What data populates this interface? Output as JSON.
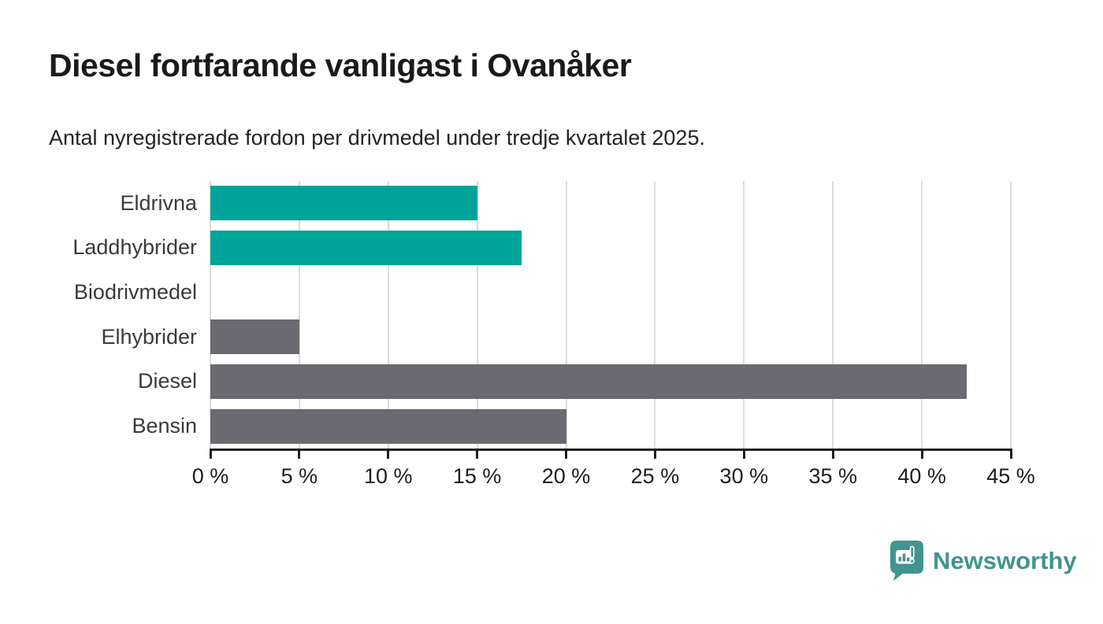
{
  "header": {
    "title": "Diesel fortfarande vanligast i Ovanåker",
    "subtitle": "Antal nyregistrerade fordon per drivmedel under tredje kvartalet 2025."
  },
  "chart_data": {
    "type": "bar",
    "orientation": "horizontal",
    "title": "Diesel fortfarande vanligast i Ovanåker",
    "subtitle": "Antal nyregistrerade fordon per drivmedel under tredje kvartalet 2025.",
    "categories": [
      "Eldrivna",
      "Laddhybrider",
      "Biodrivmedel",
      "Elhybrider",
      "Diesel",
      "Bensin"
    ],
    "values": [
      15,
      17.5,
      0,
      5,
      42.5,
      20
    ],
    "value_unit": "%",
    "bar_colors": [
      "#00a49a",
      "#00a49a",
      "#00a49a",
      "#6b6a70",
      "#6b6a70",
      "#6b6a70"
    ],
    "xlim": [
      0,
      45
    ],
    "tick_step": 5,
    "x_tick_labels": [
      "0 %",
      "5 %",
      "10 %",
      "15 %",
      "20 %",
      "25 %",
      "30 %",
      "35 %",
      "40 %",
      "45 %"
    ],
    "grid": true,
    "legend": false,
    "xlabel": "",
    "ylabel": ""
  },
  "footer": {
    "brand": "Newsworthy",
    "brand_color": "#42948e"
  },
  "colors": {
    "teal_bar": "#00a49a",
    "gray_bar": "#6b6a70",
    "gridline": "#dcdcdc",
    "axis": "#1d1d1b",
    "title_text": "#1a1a1a",
    "label_text": "#3a3a3a",
    "background": "#ffffff"
  }
}
